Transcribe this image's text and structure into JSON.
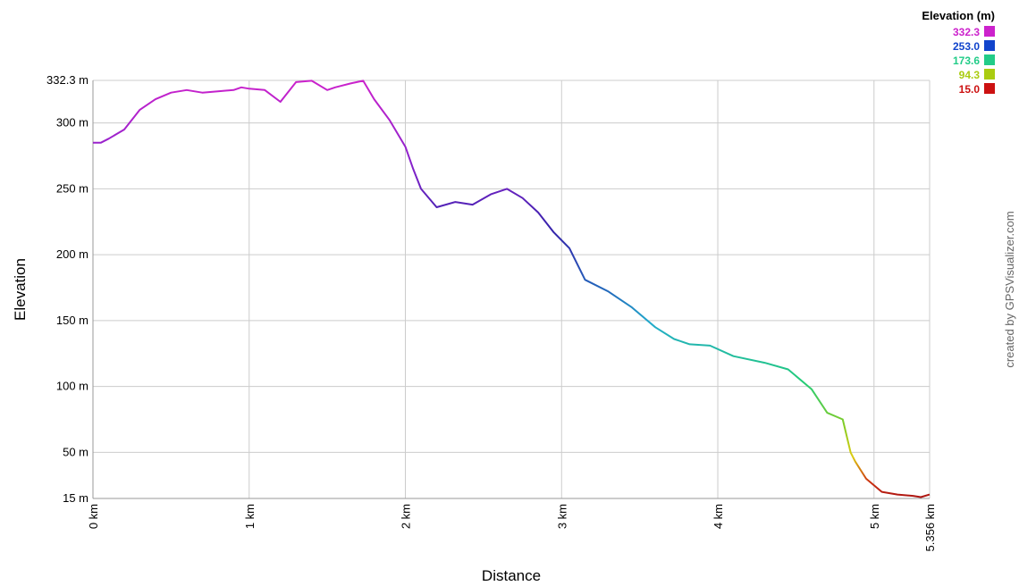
{
  "chart_data": {
    "type": "line",
    "xlabel": "Distance",
    "ylabel": "Elevation",
    "xlim": [
      0,
      5.356
    ],
    "ylim": [
      15,
      332.3
    ],
    "grid": true,
    "x_ticks": [
      {
        "value": 0,
        "label": "0 km"
      },
      {
        "value": 1,
        "label": "1 km"
      },
      {
        "value": 2,
        "label": "2 km"
      },
      {
        "value": 3,
        "label": "3 km"
      },
      {
        "value": 4,
        "label": "4 km"
      },
      {
        "value": 5,
        "label": "5 km"
      },
      {
        "value": 5.356,
        "label": "5.356 km"
      }
    ],
    "y_ticks": [
      {
        "value": 332.3,
        "label": "332.3 m"
      },
      {
        "value": 300,
        "label": "300 m"
      },
      {
        "value": 250,
        "label": "250 m"
      },
      {
        "value": 200,
        "label": "200 m"
      },
      {
        "value": 150,
        "label": "150 m"
      },
      {
        "value": 100,
        "label": "100 m"
      },
      {
        "value": 50,
        "label": "50 m"
      },
      {
        "value": 15,
        "label": "15 m"
      }
    ],
    "x": [
      0,
      0.05,
      0.1,
      0.2,
      0.3,
      0.4,
      0.5,
      0.6,
      0.7,
      0.8,
      0.9,
      0.95,
      1.0,
      1.1,
      1.2,
      1.3,
      1.4,
      1.5,
      1.55,
      1.65,
      1.73,
      1.8,
      1.9,
      2.0,
      2.05,
      2.1,
      2.2,
      2.32,
      2.43,
      2.55,
      2.65,
      2.75,
      2.85,
      2.95,
      3.05,
      3.15,
      3.3,
      3.45,
      3.6,
      3.72,
      3.82,
      3.95,
      4.1,
      4.3,
      4.45,
      4.6,
      4.7,
      4.8,
      4.85,
      4.88,
      4.95,
      5.05,
      5.15,
      5.25,
      5.3,
      5.356
    ],
    "y": [
      285,
      285,
      288,
      295,
      310,
      318,
      323,
      325,
      323,
      324,
      325,
      327,
      326,
      325,
      316,
      331,
      332,
      325,
      327,
      330,
      332,
      318,
      302,
      282,
      265,
      250,
      236,
      240,
      238,
      246,
      250,
      243,
      232,
      217,
      205,
      181,
      172,
      160,
      145,
      136,
      132,
      131,
      123,
      118,
      113,
      98,
      80,
      75,
      50,
      43,
      30,
      20,
      18,
      17,
      16,
      18
    ],
    "legend": {
      "title": "Elevation (m)",
      "placement": "top-right",
      "entries": [
        {
          "label": "332.3",
          "color": "#cc22cc"
        },
        {
          "label": "253.0",
          "color": "#1144cc"
        },
        {
          "label": "173.6",
          "color": "#22cc88"
        },
        {
          "label": "94.3",
          "color": "#aacc11"
        },
        {
          "label": "15.0",
          "color": "#cc1111"
        }
      ]
    }
  },
  "credit": "created by GPSVisualizer.com"
}
